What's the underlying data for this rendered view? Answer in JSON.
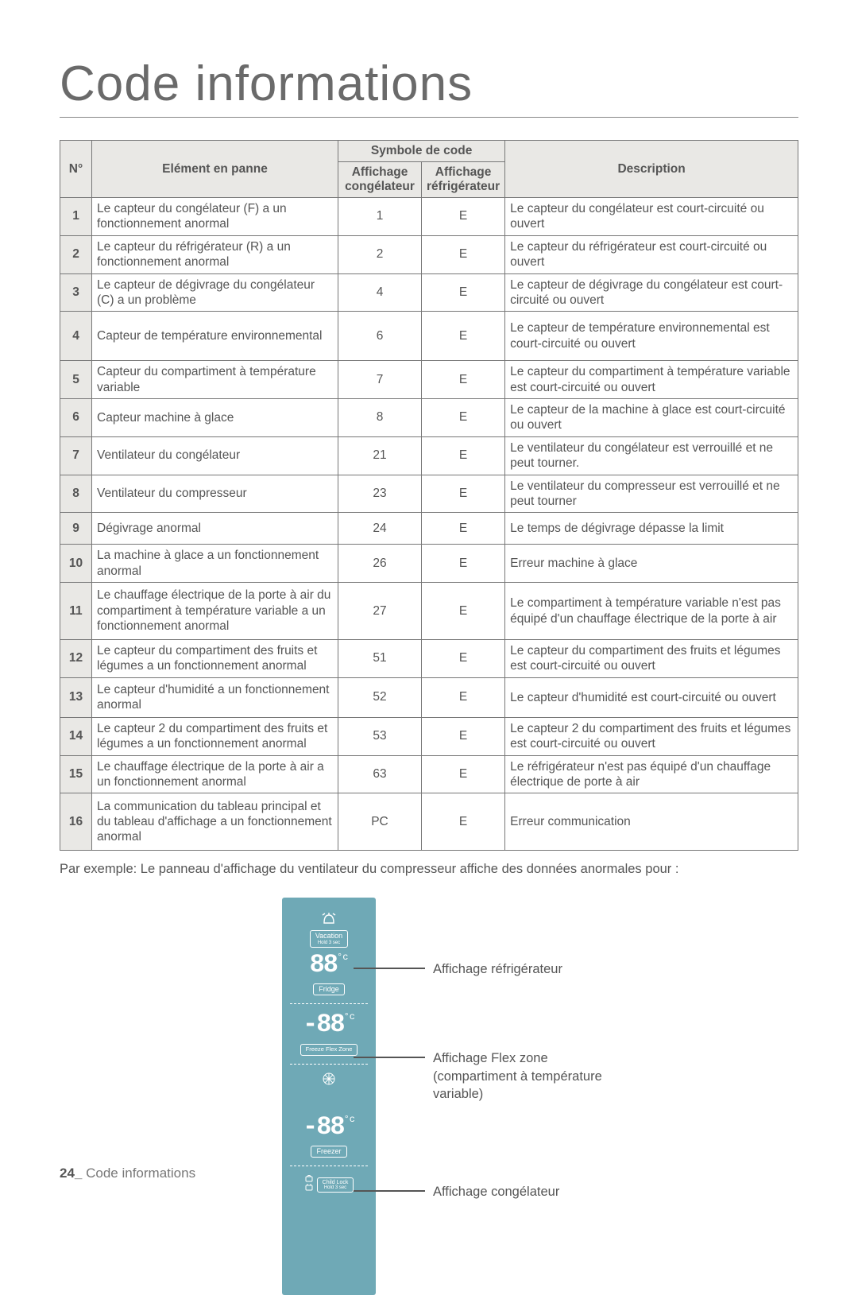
{
  "title": "Code informations",
  "table": {
    "headers": {
      "num": "N°",
      "elem": "Elément en panne",
      "sym_group": "Symbole de code",
      "sym_freezer": "Affichage congélateur",
      "sym_fridge": "Affichage réfrigérateur",
      "desc": "Description"
    },
    "rows": [
      {
        "n": "1",
        "elem": "Le capteur du congélateur (F) a un fonctionnement anormal",
        "f": "1",
        "r": "E",
        "desc": "Le capteur du congélateur est court-circuité ou ouvert",
        "cls": "row-norm"
      },
      {
        "n": "2",
        "elem": "Le capteur du réfrigérateur (R) a un fonctionnement anormal",
        "f": "2",
        "r": "E",
        "desc": "Le capteur du réfrigérateur est court-circuité ou ouvert",
        "cls": "row-norm"
      },
      {
        "n": "3",
        "elem": "Le capteur de dégivrage du congélateur (C) a un problème",
        "f": "4",
        "r": "E",
        "desc": "Le capteur de dégivrage du congélateur est court-circuité ou ouvert",
        "cls": "row-norm"
      },
      {
        "n": "4",
        "elem": "Capteur de température environnemental",
        "f": "6",
        "r": "E",
        "desc": "Le capteur de température environnemental est court-circuité ou ouvert",
        "cls": "row-tall"
      },
      {
        "n": "5",
        "elem": "Capteur du compartiment à température variable",
        "f": "7",
        "r": "E",
        "desc": "Le capteur du compartiment à température variable est court-circuité ou ouvert",
        "cls": "row-norm"
      },
      {
        "n": "6",
        "elem": "Capteur machine à glace",
        "f": "8",
        "r": "E",
        "desc": "Le capteur de la machine à glace est court-circuité ou ouvert",
        "cls": "row-norm"
      },
      {
        "n": "7",
        "elem": "Ventilateur du congélateur",
        "f": "21",
        "r": "E",
        "desc": "Le ventilateur du congélateur est verrouillé et ne peut tourner.",
        "cls": "row-norm"
      },
      {
        "n": "8",
        "elem": "Ventilateur du compresseur",
        "f": "23",
        "r": "E",
        "desc": "Le ventilateur du compresseur est verrouillé et ne peut tourner",
        "cls": "row-norm"
      },
      {
        "n": "9",
        "elem": "Dégivrage anormal",
        "f": "24",
        "r": "E",
        "desc": "Le temps de dégivrage dépasse la limit",
        "cls": "row-norm"
      },
      {
        "n": "10",
        "elem": "La machine à glace a un fonctionnement anormal",
        "f": "26",
        "r": "E",
        "desc": "Erreur machine à glace",
        "cls": "row-norm"
      },
      {
        "n": "11",
        "elem": "Le chauffage électrique de la porte à air du compartiment à température variable a un fonctionnement anormal",
        "f": "27",
        "r": "E",
        "desc": "Le compartiment à température variable n'est pas équipé d'un chauffage électrique de la porte à air",
        "cls": "row-big"
      },
      {
        "n": "12",
        "elem": "Le capteur du compartiment des fruits et légumes a un fonctionnement anormal",
        "f": "51",
        "r": "E",
        "desc": "Le capteur du compartiment des fruits et légumes est court-circuité ou ouvert",
        "cls": "row-norm"
      },
      {
        "n": "13",
        "elem": "Le capteur d'humidité  a un fonctionnement anormal",
        "f": "52",
        "r": "E",
        "desc": "Le capteur d'humidité est court-circuité ou ouvert",
        "cls": "row-med"
      },
      {
        "n": "14",
        "elem": "Le capteur 2 du compartiment des fruits et légumes a un fonctionnement anormal",
        "f": "53",
        "r": "E",
        "desc": "Le capteur 2 du compartiment des fruits et légumes est court-circuité ou ouvert",
        "cls": "row-norm"
      },
      {
        "n": "15",
        "elem": "Le chauffage électrique de la porte à air a un fonctionnement anormal",
        "f": "63",
        "r": "E",
        "desc": "Le réfrigérateur n'est pas équipé d'un chauffage électrique de porte à air",
        "cls": "row-norm"
      },
      {
        "n": "16",
        "elem": "La communication du tableau principal et du tableau d'affichage a un fonctionnement anormal",
        "f": "PC",
        "r": "E",
        "desc": "Erreur communication",
        "cls": "row-big"
      }
    ]
  },
  "example": "Par exemple: Le panneau d'affichage du ventilateur du compresseur affiche des données anormales pour :",
  "panel": {
    "vacation": "Vacation",
    "hold": "Hold 3 sec",
    "fridge_val": "88",
    "fridge_btn": "Fridge",
    "flex_val": "-88",
    "flex_btn": "Freeze Flex Zone",
    "freezer_val": "-88",
    "freezer_btn": "Freezer",
    "child_lock": "Child Lock",
    "child_hold": "Hold 3 sec",
    "deg": "°c"
  },
  "labels": {
    "fridge": "Affichage réfrigérateur",
    "flex1": "Affichage Flex zone",
    "flex2": "(compartiment à température",
    "flex3": "variable)",
    "freezer": "Affichage congélateur"
  },
  "footer": {
    "page": "24_",
    "section": "Code informations"
  }
}
